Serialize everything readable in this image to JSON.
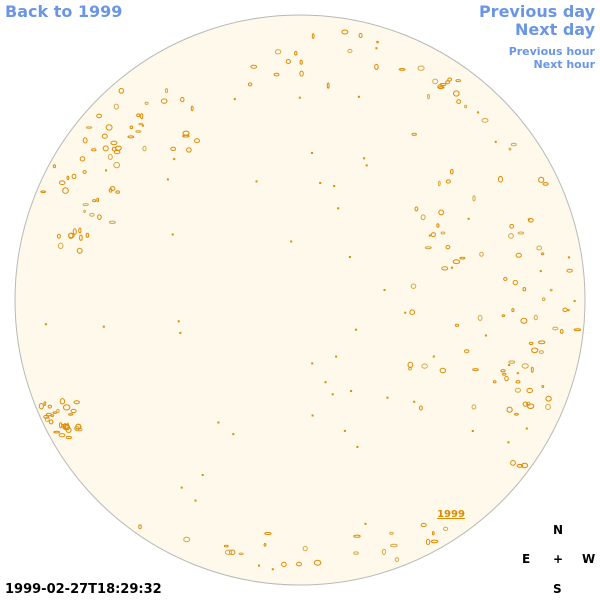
{
  "navigation": {
    "back": "Back to 1999",
    "previous_day": "Previous day",
    "next_day": "Next day",
    "previous_hour": "Previous hour",
    "next_hour": "Next hour"
  },
  "image": {
    "label": "1999",
    "timestamp": "1999-02-27T18:29:32"
  },
  "compass": {
    "north": "N",
    "east": "E",
    "center": "+",
    "west": "W",
    "south": "S"
  }
}
